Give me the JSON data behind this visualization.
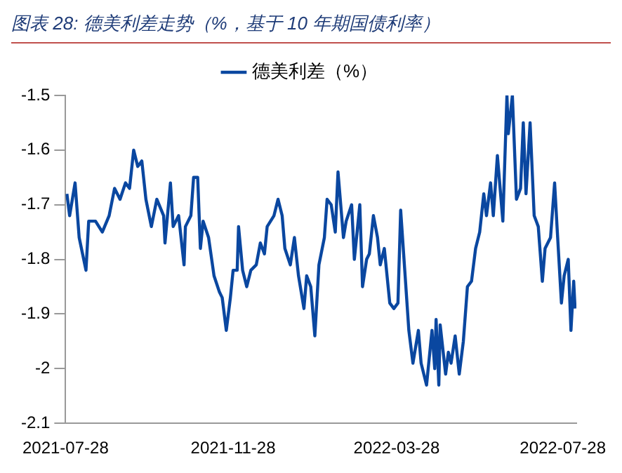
{
  "chart_data": {
    "type": "line",
    "title": "图表 28: 德美利差走势（%，基于 10 年期国债利率）",
    "x": [
      "2021-07-29",
      "2021-07-31",
      "2021-08-04",
      "2021-08-07",
      "2021-08-12",
      "2021-08-14",
      "2021-08-19",
      "2021-08-24",
      "2021-08-29",
      "2021-09-02",
      "2021-09-06",
      "2021-09-10",
      "2021-09-13",
      "2021-09-16",
      "2021-09-19",
      "2021-09-22",
      "2021-09-25",
      "2021-09-29",
      "2021-10-03",
      "2021-10-08",
      "2021-10-09",
      "2021-10-13",
      "2021-10-15",
      "2021-10-19",
      "2021-10-23",
      "2021-10-24",
      "2021-10-28",
      "2021-10-30",
      "2021-11-02",
      "2021-11-04",
      "2021-11-06",
      "2021-11-10",
      "2021-11-14",
      "2021-11-18",
      "2021-11-20",
      "2021-11-23",
      "2021-11-26",
      "2021-11-28",
      "2021-12-01",
      "2021-12-02",
      "2021-12-05",
      "2021-12-08",
      "2021-12-11",
      "2021-12-15",
      "2021-12-18",
      "2021-12-21",
      "2021-12-23",
      "2021-12-28",
      "2021-12-31",
      "2022-01-03",
      "2022-01-05",
      "2022-01-09",
      "2022-01-12",
      "2022-01-15",
      "2022-01-19",
      "2022-01-21",
      "2022-01-24",
      "2022-01-27",
      "2022-01-30",
      "2022-02-03",
      "2022-02-05",
      "2022-02-08",
      "2022-02-11",
      "2022-02-13",
      "2022-02-17",
      "2022-02-19",
      "2022-02-23",
      "2022-02-25",
      "2022-03-01",
      "2022-03-03",
      "2022-03-06",
      "2022-03-08",
      "2022-03-11",
      "2022-03-14",
      "2022-03-16",
      "2022-03-19",
      "2022-03-23",
      "2022-03-26",
      "2022-03-29",
      "2022-03-31",
      "2022-04-03",
      "2022-04-06",
      "2022-04-09",
      "2022-04-13",
      "2022-04-15",
      "2022-04-19",
      "2022-04-23",
      "2022-04-25",
      "2022-04-26",
      "2022-04-28",
      "2022-04-29",
      "2022-05-03",
      "2022-05-05",
      "2022-05-07",
      "2022-05-10",
      "2022-05-13",
      "2022-05-16",
      "2022-05-19",
      "2022-05-22",
      "2022-05-25",
      "2022-05-28",
      "2022-05-31",
      "2022-06-02",
      "2022-06-05",
      "2022-06-07",
      "2022-06-10",
      "2022-06-14",
      "2022-06-17",
      "2022-06-18",
      "2022-06-21",
      "2022-06-24",
      "2022-06-27",
      "2022-06-29",
      "2022-07-01",
      "2022-07-04",
      "2022-07-07",
      "2022-07-10",
      "2022-07-13",
      "2022-07-15",
      "2022-07-19",
      "2022-07-22",
      "2022-07-24",
      "2022-07-27",
      "2022-07-29",
      "2022-08-01",
      "2022-08-03",
      "2022-08-05",
      "2022-08-06"
    ],
    "series": [
      {
        "name": "德美利差（%）",
        "color": "#0a47a0",
        "values": [
          -1.68,
          -1.72,
          -1.66,
          -1.76,
          -1.82,
          -1.73,
          -1.73,
          -1.75,
          -1.72,
          -1.67,
          -1.69,
          -1.66,
          -1.67,
          -1.6,
          -1.63,
          -1.62,
          -1.69,
          -1.74,
          -1.69,
          -1.72,
          -1.77,
          -1.66,
          -1.74,
          -1.72,
          -1.81,
          -1.74,
          -1.72,
          -1.65,
          -1.65,
          -1.78,
          -1.73,
          -1.76,
          -1.83,
          -1.86,
          -1.87,
          -1.93,
          -1.87,
          -1.82,
          -1.82,
          -1.74,
          -1.82,
          -1.85,
          -1.82,
          -1.81,
          -1.77,
          -1.79,
          -1.74,
          -1.72,
          -1.69,
          -1.72,
          -1.78,
          -1.81,
          -1.76,
          -1.83,
          -1.89,
          -1.83,
          -1.85,
          -1.94,
          -1.81,
          -1.76,
          -1.69,
          -1.7,
          -1.75,
          -1.64,
          -1.76,
          -1.73,
          -1.7,
          -1.8,
          -1.7,
          -1.85,
          -1.8,
          -1.79,
          -1.72,
          -1.76,
          -1.81,
          -1.78,
          -1.88,
          -1.89,
          -1.88,
          -1.71,
          -1.82,
          -1.93,
          -1.99,
          -1.93,
          -1.99,
          -2.03,
          -1.93,
          -2.0,
          -1.91,
          -2.03,
          -1.92,
          -2.01,
          -1.97,
          -1.99,
          -1.94,
          -2.01,
          -1.95,
          -1.85,
          -1.84,
          -1.78,
          -1.75,
          -1.68,
          -1.72,
          -1.66,
          -1.72,
          -1.61,
          -1.73,
          -1.5,
          -1.57,
          -1.5,
          -1.69,
          -1.67,
          -1.55,
          -1.68,
          -1.55,
          -1.72,
          -1.74,
          -1.84,
          -1.78,
          -1.76,
          -1.66,
          -1.75,
          -1.88,
          -1.83,
          -1.8,
          -1.93,
          -1.84,
          -1.89
        ]
      }
    ],
    "xlim": [
      "2021-07-28",
      "2022-08-07"
    ],
    "xticks": [
      "2021-07-28",
      "2021-11-28",
      "2022-03-28",
      "2022-07-28"
    ],
    "ylim": [
      -2.1,
      -1.5
    ],
    "yticks": [
      -2.1,
      -2.0,
      -1.9,
      -1.8,
      -1.7,
      -1.6,
      -1.5
    ],
    "legend": "top",
    "grid": false,
    "marker": "none",
    "line_style": "solid"
  }
}
